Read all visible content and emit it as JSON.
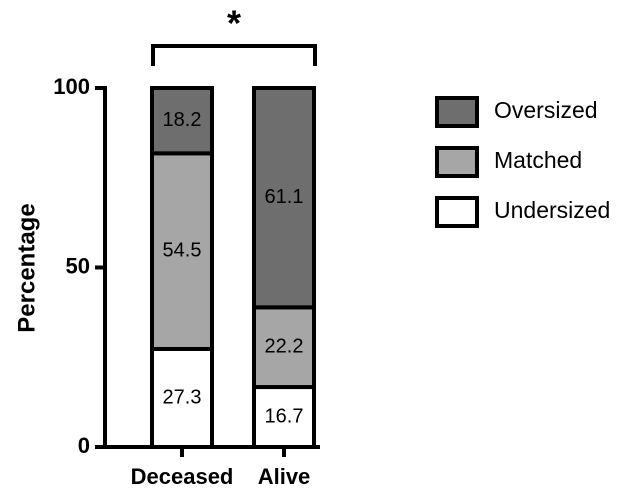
{
  "chart_data": {
    "type": "stacked_bar",
    "y_label": "Percentage",
    "annotation": "*",
    "categories": [
      "Deceased",
      "Alive"
    ],
    "series": [
      {
        "name": "Undersized",
        "color": "#ffffff",
        "values": [
          27.3,
          16.7
        ]
      },
      {
        "name": "Matched",
        "color": "#a6a6a6",
        "values": [
          54.5,
          22.2
        ]
      },
      {
        "name": "Oversized",
        "color": "#6e6e6e",
        "values": [
          18.2,
          61.1
        ]
      }
    ],
    "ylim": [
      0,
      100
    ],
    "yticks": [
      0,
      50,
      100
    ],
    "legend": "right"
  }
}
